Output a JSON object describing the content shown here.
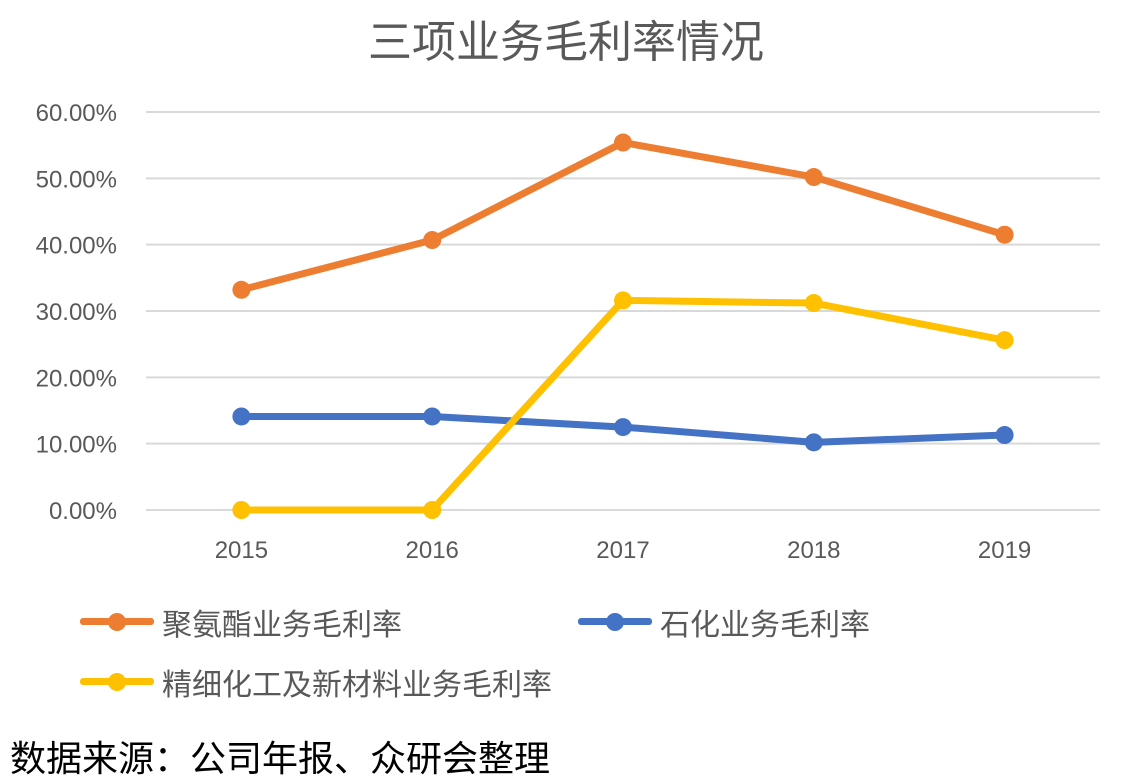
{
  "chart_data": {
    "type": "line",
    "title": "三项业务毛利率情况",
    "categories": [
      "2015",
      "2016",
      "2017",
      "2018",
      "2019"
    ],
    "ylim": [
      0,
      0.6
    ],
    "yticks": [
      "0.00%",
      "10.00%",
      "20.00%",
      "30.00%",
      "40.00%",
      "50.00%",
      "60.00%"
    ],
    "grid": true,
    "legend_position": "bottom",
    "series": [
      {
        "name": "聚氨酯业务毛利率",
        "color": "#ED7D31",
        "values": [
          0.332,
          0.407,
          0.554,
          0.502,
          0.415
        ]
      },
      {
        "name": "石化业务毛利率",
        "color": "#4472C4",
        "values": [
          0.141,
          0.141,
          0.125,
          0.102,
          0.113
        ]
      },
      {
        "name": "精细化工及新材料业务毛利率",
        "color": "#FFC000",
        "values": [
          0.0,
          0.0,
          0.316,
          0.312,
          0.256
        ]
      }
    ]
  },
  "source_note": "数据来源：公司年报、众研会整理"
}
